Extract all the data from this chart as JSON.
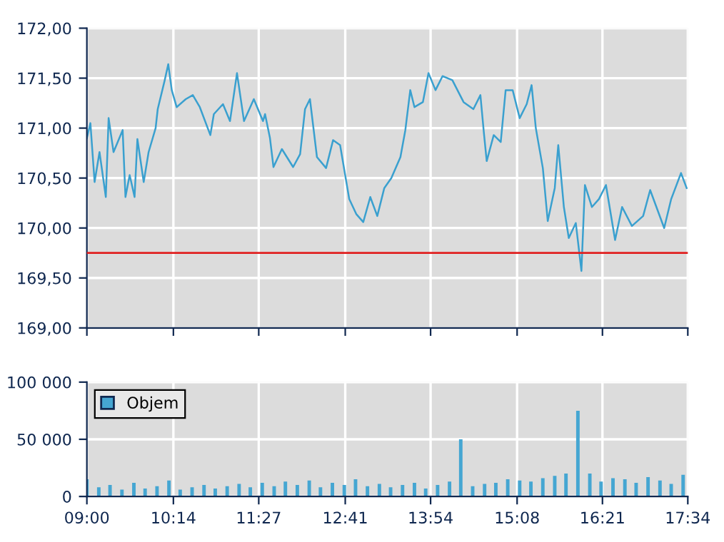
{
  "chart_data": [
    {
      "type": "line",
      "grid": true,
      "tick_labels": "y",
      "x": [
        9.0,
        9.05,
        9.11,
        9.18,
        9.27,
        9.31,
        9.38,
        9.51,
        9.55,
        9.61,
        9.68,
        9.72,
        9.81,
        9.88,
        9.98,
        10.01,
        10.11,
        10.16,
        10.21,
        10.28,
        10.41,
        10.51,
        10.61,
        10.76,
        10.81,
        10.94,
        11.04,
        11.14,
        11.24,
        11.38,
        11.51,
        11.54,
        11.61,
        11.66,
        11.78,
        11.94,
        12.04,
        12.11,
        12.18,
        12.28,
        12.41,
        12.51,
        12.61,
        12.74,
        12.84,
        12.94,
        13.04,
        13.14,
        13.24,
        13.34,
        13.47,
        13.54,
        13.61,
        13.67,
        13.79,
        13.87,
        13.97,
        14.07,
        14.21,
        14.37,
        14.51,
        14.61,
        14.66,
        14.7,
        14.8,
        14.9,
        14.97,
        15.07,
        15.17,
        15.27,
        15.34,
        15.4,
        15.5,
        15.57,
        15.67,
        15.72,
        15.8,
        15.87,
        15.97,
        16.05,
        16.1,
        16.2,
        16.3,
        16.4,
        16.53,
        16.63,
        16.77,
        16.93,
        17.03,
        17.23,
        17.33,
        17.47,
        17.55
      ],
      "series": [
        {
          "color": "#3aa0cf",
          "values": [
            170.9,
            171.05,
            170.46,
            170.76,
            170.31,
            171.1,
            170.76,
            170.98,
            170.31,
            170.53,
            170.31,
            170.89,
            170.46,
            170.76,
            171.0,
            171.19,
            171.48,
            171.64,
            171.38,
            171.21,
            171.29,
            171.33,
            171.21,
            170.93,
            171.14,
            171.24,
            171.07,
            171.55,
            171.07,
            171.29,
            171.07,
            171.14,
            170.9,
            170.61,
            170.79,
            170.61,
            170.74,
            171.19,
            171.29,
            170.71,
            170.6,
            170.88,
            170.83,
            170.29,
            170.14,
            170.06,
            170.31,
            170.12,
            170.4,
            170.5,
            170.71,
            170.98,
            171.38,
            171.21,
            171.26,
            171.55,
            171.38,
            171.52,
            171.48,
            171.26,
            171.19,
            171.33,
            170.95,
            170.67,
            170.93,
            170.86,
            171.38,
            171.38,
            171.1,
            171.24,
            171.43,
            171.0,
            170.6,
            170.07,
            170.4,
            170.83,
            170.21,
            169.9,
            170.05,
            169.57,
            170.43,
            170.21,
            170.29,
            170.43,
            169.88,
            170.21,
            170.02,
            170.12,
            170.38,
            170.0,
            170.29,
            170.55,
            170.4
          ]
        }
      ],
      "xlim": [
        9.0,
        17.5667
      ],
      "xticks": [
        {
          "value": 9.0,
          "label": null
        },
        {
          "value": 10.2333,
          "label": null
        },
        {
          "value": 11.45,
          "label": null
        },
        {
          "value": 12.6833,
          "label": null
        },
        {
          "value": 13.9,
          "label": null
        },
        {
          "value": 15.1333,
          "label": null
        },
        {
          "value": 16.35,
          "label": null
        },
        {
          "value": 17.5667,
          "label": null
        }
      ],
      "ylim": [
        169,
        172
      ],
      "yticks": [
        {
          "value": 169,
          "label": "169,00"
        },
        {
          "value": 169.5,
          "label": "169,50"
        },
        {
          "value": 170,
          "label": "170,00"
        },
        {
          "value": 170.5,
          "label": "170,50"
        },
        {
          "value": 171,
          "label": "171,00"
        },
        {
          "value": 171.5,
          "label": "171,50"
        },
        {
          "value": 172,
          "label": "172,00"
        }
      ],
      "ref_lines": [
        {
          "axis": "y",
          "value": 169.75,
          "color": "#e02020"
        }
      ]
    },
    {
      "type": "bar",
      "grid": true,
      "legend": "top left",
      "x": [
        9.0,
        9.17,
        9.33,
        9.5,
        9.67,
        9.83,
        10.0,
        10.17,
        10.33,
        10.5,
        10.67,
        10.83,
        11.0,
        11.17,
        11.33,
        11.5,
        11.67,
        11.83,
        12.0,
        12.17,
        12.33,
        12.5,
        12.67,
        12.83,
        13.0,
        13.17,
        13.33,
        13.5,
        13.67,
        13.83,
        14.0,
        14.17,
        14.33,
        14.5,
        14.67,
        14.83,
        15.0,
        15.17,
        15.33,
        15.5,
        15.67,
        15.83,
        16.0,
        16.17,
        16.33,
        16.5,
        16.67,
        16.83,
        17.0,
        17.17,
        17.33,
        17.5
      ],
      "series": [
        {
          "name": "Objem",
          "color": "#45a6d2",
          "values": [
            15000,
            8000,
            10000,
            6000,
            12000,
            7000,
            9000,
            14000,
            6000,
            8000,
            10000,
            7000,
            9000,
            11000,
            8000,
            12000,
            9000,
            13000,
            10000,
            14000,
            8000,
            12000,
            10000,
            15000,
            9000,
            11000,
            8000,
            10000,
            12000,
            7000,
            10000,
            13000,
            50000,
            9000,
            11000,
            12000,
            15000,
            14000,
            13000,
            16000,
            18000,
            20000,
            75000,
            20000,
            13000,
            16000,
            15000,
            12000,
            17000,
            14000,
            11000,
            19000
          ]
        }
      ],
      "xlim": [
        9.0,
        17.5667
      ],
      "xticks": [
        {
          "value": 9.0,
          "label": "09:00"
        },
        {
          "value": 10.2333,
          "label": "10:14"
        },
        {
          "value": 11.45,
          "label": "11:27"
        },
        {
          "value": 12.6833,
          "label": "12:41"
        },
        {
          "value": 13.9,
          "label": "13:54"
        },
        {
          "value": 15.1333,
          "label": "15:08"
        },
        {
          "value": 16.35,
          "label": "16:21"
        },
        {
          "value": 17.5667,
          "label": "17:34"
        }
      ],
      "ylim": [
        0,
        100000
      ],
      "yticks": [
        0,
        {
          "value": 50000,
          "label": "50 000"
        },
        {
          "value": 100000,
          "label": "100 000"
        }
      ]
    }
  ]
}
